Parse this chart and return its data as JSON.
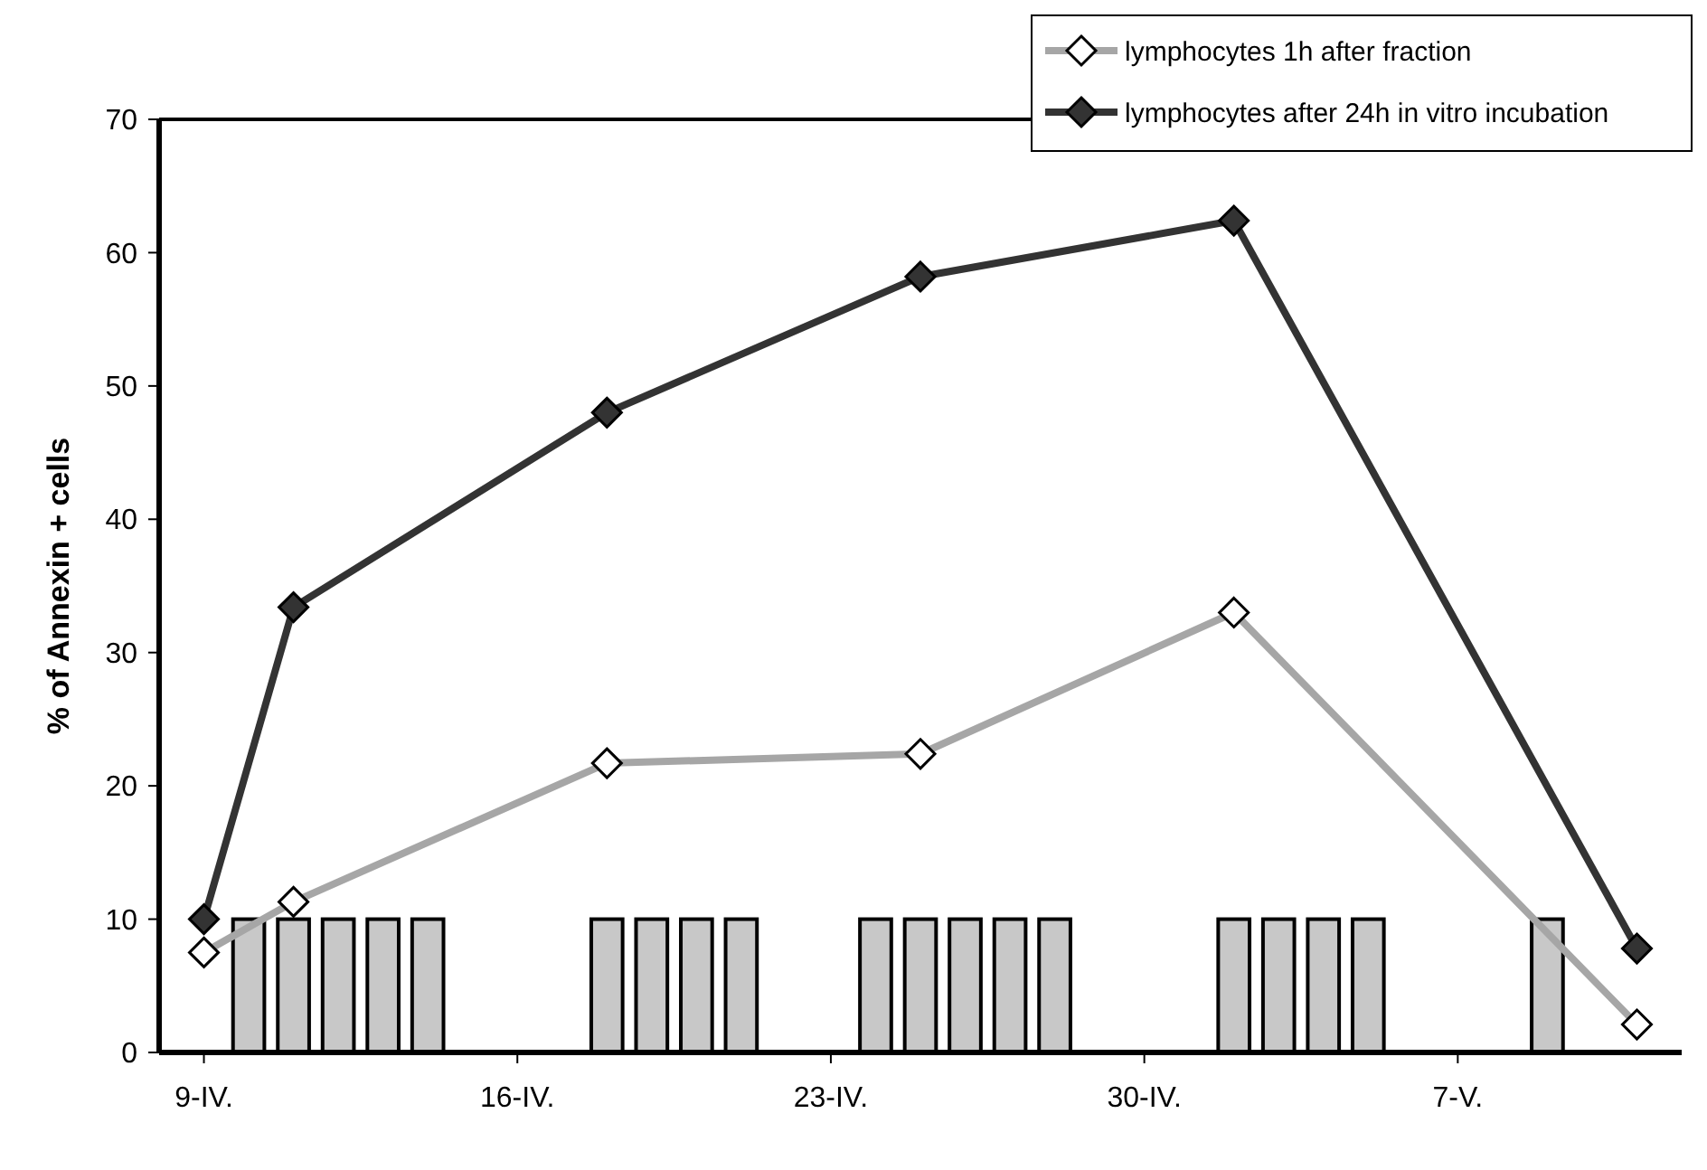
{
  "chart_data": {
    "type": "line",
    "ylabel": "% of Annexin + cells",
    "xlim": [
      "--04-08",
      "--05-12"
    ],
    "xticks": [
      {
        "value": "--04-09",
        "label": "9-IV."
      },
      {
        "value": "--04-16",
        "label": "16-IV."
      },
      {
        "value": "--04-23",
        "label": "23-IV."
      },
      {
        "value": "--04-30",
        "label": "30-IV."
      },
      {
        "value": "--05-07",
        "label": "7-V."
      }
    ],
    "ylim": [
      0,
      70
    ],
    "yticks": [
      0,
      10,
      20,
      30,
      40,
      50,
      60,
      70
    ],
    "grid": false,
    "legend": "top right",
    "marker": "diamond",
    "series": [
      {
        "type": "bar",
        "color": "#c8c8c8",
        "x": [
          "--04-10",
          "--04-11",
          "--04-12",
          "--04-13",
          "--04-14",
          "--04-18",
          "--04-19",
          "--04-20",
          "--04-21",
          "--04-24",
          "--04-25",
          "--04-26",
          "--04-27",
          "--04-28",
          "--05-02",
          "--05-03",
          "--05-04",
          "--05-05",
          "--05-09"
        ],
        "values": [
          10,
          10,
          10,
          10,
          10,
          10,
          10,
          10,
          10,
          10,
          10,
          10,
          10,
          10,
          10,
          10,
          10,
          10,
          10
        ]
      },
      {
        "name": "lymphocytes 1h after fraction",
        "color": "#a6a6a6",
        "x": [
          "--04-09",
          "--04-11",
          "--04-18",
          "--04-25",
          "--05-02",
          "--05-11"
        ],
        "values": [
          7.5,
          11.3,
          21.7,
          22.4,
          33.0,
          2.1
        ]
      },
      {
        "name": "lymphocytes after 24h in vitro incubation",
        "color": "#333333",
        "x": [
          "--04-09",
          "--04-11",
          "--04-18",
          "--04-25",
          "--05-02",
          "--05-11"
        ],
        "values": [
          10.0,
          33.4,
          48.0,
          58.2,
          62.4,
          7.8
        ]
      }
    ]
  }
}
